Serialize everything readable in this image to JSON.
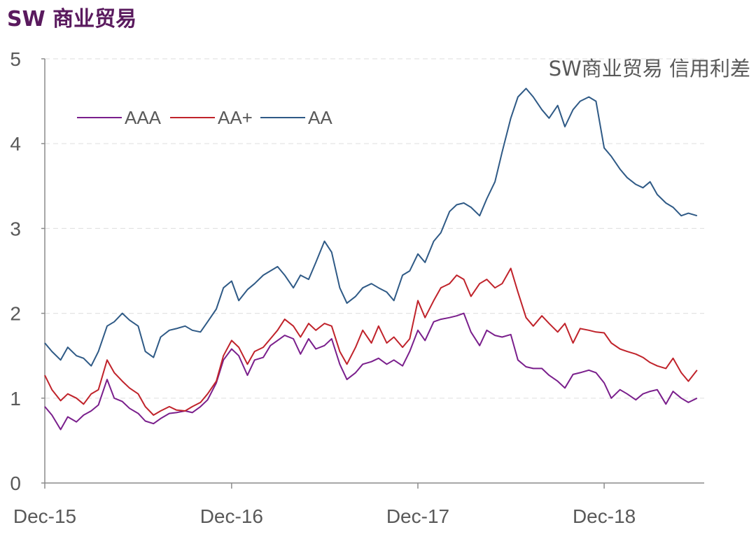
{
  "page_title": "SW 商业贸易",
  "chart_data": {
    "type": "line",
    "title": "SW商业贸易 信用利差",
    "xlabel": "",
    "ylabel": "",
    "ylim": [
      0,
      5
    ],
    "xlim": [
      "2015-12-01",
      "2019-06-15"
    ],
    "yticks": [
      "0",
      "1",
      "2",
      "3",
      "4",
      "5"
    ],
    "xticks": [
      {
        "label": "Dec-15",
        "date": "2015-12-01"
      },
      {
        "label": "Dec-16",
        "date": "2016-12-01"
      },
      {
        "label": "Dec-17",
        "date": "2017-12-01"
      },
      {
        "label": "Dec-18",
        "date": "2018-12-01"
      }
    ],
    "grid": "horizontal dashed",
    "legend_position": "top-left",
    "series": [
      {
        "name": "AAA",
        "color": "#7a1f8c",
        "points": [
          [
            "2015-12-01",
            0.9
          ],
          [
            "2015-12-15",
            0.8
          ],
          [
            "2016-01-01",
            0.63
          ],
          [
            "2016-01-15",
            0.78
          ],
          [
            "2016-02-01",
            0.72
          ],
          [
            "2016-02-15",
            0.8
          ],
          [
            "2016-03-01",
            0.85
          ],
          [
            "2016-03-15",
            0.92
          ],
          [
            "2016-04-01",
            1.22
          ],
          [
            "2016-04-15",
            1.0
          ],
          [
            "2016-05-01",
            0.96
          ],
          [
            "2016-05-15",
            0.88
          ],
          [
            "2016-06-01",
            0.82
          ],
          [
            "2016-06-15",
            0.73
          ],
          [
            "2016-07-01",
            0.7
          ],
          [
            "2016-07-15",
            0.76
          ],
          [
            "2016-08-01",
            0.82
          ],
          [
            "2016-08-15",
            0.83
          ],
          [
            "2016-09-01",
            0.85
          ],
          [
            "2016-09-15",
            0.83
          ],
          [
            "2016-10-01",
            0.9
          ],
          [
            "2016-10-15",
            0.98
          ],
          [
            "2016-11-01",
            1.18
          ],
          [
            "2016-11-15",
            1.45
          ],
          [
            "2016-12-01",
            1.58
          ],
          [
            "2016-12-15",
            1.5
          ],
          [
            "2017-01-01",
            1.27
          ],
          [
            "2017-01-15",
            1.45
          ],
          [
            "2017-02-01",
            1.48
          ],
          [
            "2017-02-15",
            1.62
          ],
          [
            "2017-03-01",
            1.68
          ],
          [
            "2017-03-15",
            1.74
          ],
          [
            "2017-04-01",
            1.7
          ],
          [
            "2017-04-15",
            1.52
          ],
          [
            "2017-05-01",
            1.7
          ],
          [
            "2017-05-15",
            1.58
          ],
          [
            "2017-06-01",
            1.62
          ],
          [
            "2017-06-15",
            1.7
          ],
          [
            "2017-07-01",
            1.4
          ],
          [
            "2017-07-15",
            1.22
          ],
          [
            "2017-08-01",
            1.3
          ],
          [
            "2017-08-15",
            1.4
          ],
          [
            "2017-09-01",
            1.43
          ],
          [
            "2017-09-15",
            1.47
          ],
          [
            "2017-10-01",
            1.4
          ],
          [
            "2017-10-15",
            1.45
          ],
          [
            "2017-11-01",
            1.38
          ],
          [
            "2017-11-15",
            1.55
          ],
          [
            "2017-12-01",
            1.8
          ],
          [
            "2017-12-15",
            1.68
          ],
          [
            "2018-01-01",
            1.9
          ],
          [
            "2018-01-15",
            1.93
          ],
          [
            "2018-02-01",
            1.95
          ],
          [
            "2018-02-15",
            1.97
          ],
          [
            "2018-03-01",
            2.0
          ],
          [
            "2018-03-15",
            1.78
          ],
          [
            "2018-04-01",
            1.62
          ],
          [
            "2018-04-15",
            1.8
          ],
          [
            "2018-05-01",
            1.74
          ],
          [
            "2018-05-15",
            1.72
          ],
          [
            "2018-06-01",
            1.75
          ],
          [
            "2018-06-15",
            1.45
          ],
          [
            "2018-07-01",
            1.37
          ],
          [
            "2018-07-15",
            1.35
          ],
          [
            "2018-08-01",
            1.35
          ],
          [
            "2018-08-15",
            1.27
          ],
          [
            "2018-09-01",
            1.2
          ],
          [
            "2018-09-15",
            1.12
          ],
          [
            "2018-10-01",
            1.28
          ],
          [
            "2018-10-15",
            1.3
          ],
          [
            "2018-11-01",
            1.33
          ],
          [
            "2018-11-15",
            1.3
          ],
          [
            "2018-12-01",
            1.18
          ],
          [
            "2018-12-15",
            1.0
          ],
          [
            "2019-01-01",
            1.1
          ],
          [
            "2019-01-15",
            1.05
          ],
          [
            "2019-02-01",
            0.98
          ],
          [
            "2019-02-15",
            1.05
          ],
          [
            "2019-03-01",
            1.08
          ],
          [
            "2019-03-15",
            1.1
          ],
          [
            "2019-04-01",
            0.93
          ],
          [
            "2019-04-15",
            1.08
          ],
          [
            "2019-05-01",
            1.0
          ],
          [
            "2019-05-15",
            0.95
          ],
          [
            "2019-06-01",
            1.0
          ]
        ]
      },
      {
        "name": "AA+",
        "color": "#c0232b",
        "points": [
          [
            "2015-12-01",
            1.27
          ],
          [
            "2015-12-15",
            1.1
          ],
          [
            "2016-01-01",
            0.97
          ],
          [
            "2016-01-15",
            1.05
          ],
          [
            "2016-02-01",
            1.0
          ],
          [
            "2016-02-15",
            0.93
          ],
          [
            "2016-03-01",
            1.05
          ],
          [
            "2016-03-15",
            1.1
          ],
          [
            "2016-04-01",
            1.45
          ],
          [
            "2016-04-15",
            1.3
          ],
          [
            "2016-05-01",
            1.2
          ],
          [
            "2016-05-15",
            1.12
          ],
          [
            "2016-06-01",
            1.05
          ],
          [
            "2016-06-15",
            0.9
          ],
          [
            "2016-07-01",
            0.8
          ],
          [
            "2016-07-15",
            0.85
          ],
          [
            "2016-08-01",
            0.9
          ],
          [
            "2016-08-15",
            0.86
          ],
          [
            "2016-09-01",
            0.85
          ],
          [
            "2016-09-15",
            0.9
          ],
          [
            "2016-10-01",
            0.95
          ],
          [
            "2016-10-15",
            1.05
          ],
          [
            "2016-11-01",
            1.2
          ],
          [
            "2016-11-15",
            1.5
          ],
          [
            "2016-12-01",
            1.68
          ],
          [
            "2016-12-15",
            1.6
          ],
          [
            "2017-01-01",
            1.4
          ],
          [
            "2017-01-15",
            1.55
          ],
          [
            "2017-02-01",
            1.6
          ],
          [
            "2017-02-15",
            1.7
          ],
          [
            "2017-03-01",
            1.8
          ],
          [
            "2017-03-15",
            1.93
          ],
          [
            "2017-04-01",
            1.85
          ],
          [
            "2017-04-15",
            1.72
          ],
          [
            "2017-05-01",
            1.88
          ],
          [
            "2017-05-15",
            1.8
          ],
          [
            "2017-06-01",
            1.88
          ],
          [
            "2017-06-15",
            1.85
          ],
          [
            "2017-07-01",
            1.55
          ],
          [
            "2017-07-15",
            1.4
          ],
          [
            "2017-08-01",
            1.6
          ],
          [
            "2017-08-15",
            1.8
          ],
          [
            "2017-09-01",
            1.65
          ],
          [
            "2017-09-15",
            1.85
          ],
          [
            "2017-10-01",
            1.65
          ],
          [
            "2017-10-15",
            1.72
          ],
          [
            "2017-11-01",
            1.6
          ],
          [
            "2017-11-15",
            1.7
          ],
          [
            "2017-12-01",
            2.15
          ],
          [
            "2017-12-15",
            1.95
          ],
          [
            "2018-01-01",
            2.15
          ],
          [
            "2018-01-15",
            2.3
          ],
          [
            "2018-02-01",
            2.35
          ],
          [
            "2018-02-15",
            2.45
          ],
          [
            "2018-03-01",
            2.4
          ],
          [
            "2018-03-15",
            2.2
          ],
          [
            "2018-04-01",
            2.35
          ],
          [
            "2018-04-15",
            2.4
          ],
          [
            "2018-05-01",
            2.3
          ],
          [
            "2018-05-15",
            2.35
          ],
          [
            "2018-06-01",
            2.53
          ],
          [
            "2018-06-15",
            2.25
          ],
          [
            "2018-07-01",
            1.95
          ],
          [
            "2018-07-15",
            1.85
          ],
          [
            "2018-08-01",
            1.97
          ],
          [
            "2018-08-15",
            1.88
          ],
          [
            "2018-09-01",
            1.78
          ],
          [
            "2018-09-15",
            1.88
          ],
          [
            "2018-10-01",
            1.65
          ],
          [
            "2018-10-15",
            1.82
          ],
          [
            "2018-11-01",
            1.8
          ],
          [
            "2018-11-15",
            1.78
          ],
          [
            "2018-12-01",
            1.77
          ],
          [
            "2018-12-15",
            1.65
          ],
          [
            "2019-01-01",
            1.58
          ],
          [
            "2019-01-15",
            1.55
          ],
          [
            "2019-02-01",
            1.52
          ],
          [
            "2019-02-15",
            1.48
          ],
          [
            "2019-03-01",
            1.42
          ],
          [
            "2019-03-15",
            1.38
          ],
          [
            "2019-04-01",
            1.35
          ],
          [
            "2019-04-15",
            1.47
          ],
          [
            "2019-05-01",
            1.3
          ],
          [
            "2019-05-15",
            1.2
          ],
          [
            "2019-06-01",
            1.33
          ]
        ]
      },
      {
        "name": "AA",
        "color": "#2f5a86",
        "points": [
          [
            "2015-12-01",
            1.65
          ],
          [
            "2015-12-15",
            1.55
          ],
          [
            "2016-01-01",
            1.45
          ],
          [
            "2016-01-15",
            1.6
          ],
          [
            "2016-02-01",
            1.5
          ],
          [
            "2016-02-15",
            1.47
          ],
          [
            "2016-03-01",
            1.38
          ],
          [
            "2016-03-15",
            1.55
          ],
          [
            "2016-04-01",
            1.85
          ],
          [
            "2016-04-15",
            1.9
          ],
          [
            "2016-05-01",
            2.0
          ],
          [
            "2016-05-15",
            1.92
          ],
          [
            "2016-06-01",
            1.85
          ],
          [
            "2016-06-15",
            1.55
          ],
          [
            "2016-07-01",
            1.48
          ],
          [
            "2016-07-15",
            1.72
          ],
          [
            "2016-08-01",
            1.8
          ],
          [
            "2016-08-15",
            1.82
          ],
          [
            "2016-09-01",
            1.85
          ],
          [
            "2016-09-15",
            1.8
          ],
          [
            "2016-10-01",
            1.78
          ],
          [
            "2016-10-15",
            1.9
          ],
          [
            "2016-11-01",
            2.05
          ],
          [
            "2016-11-15",
            2.3
          ],
          [
            "2016-12-01",
            2.38
          ],
          [
            "2016-12-15",
            2.15
          ],
          [
            "2017-01-01",
            2.28
          ],
          [
            "2017-01-15",
            2.35
          ],
          [
            "2017-02-01",
            2.45
          ],
          [
            "2017-02-15",
            2.5
          ],
          [
            "2017-03-01",
            2.55
          ],
          [
            "2017-03-15",
            2.45
          ],
          [
            "2017-04-01",
            2.3
          ],
          [
            "2017-04-15",
            2.45
          ],
          [
            "2017-05-01",
            2.4
          ],
          [
            "2017-05-15",
            2.6
          ],
          [
            "2017-06-01",
            2.85
          ],
          [
            "2017-06-15",
            2.72
          ],
          [
            "2017-07-01",
            2.3
          ],
          [
            "2017-07-15",
            2.12
          ],
          [
            "2017-08-01",
            2.2
          ],
          [
            "2017-08-15",
            2.3
          ],
          [
            "2017-09-01",
            2.35
          ],
          [
            "2017-09-15",
            2.3
          ],
          [
            "2017-10-01",
            2.25
          ],
          [
            "2017-10-15",
            2.15
          ],
          [
            "2017-11-01",
            2.45
          ],
          [
            "2017-11-15",
            2.5
          ],
          [
            "2017-12-01",
            2.7
          ],
          [
            "2017-12-15",
            2.6
          ],
          [
            "2018-01-01",
            2.85
          ],
          [
            "2018-01-15",
            2.95
          ],
          [
            "2018-02-01",
            3.2
          ],
          [
            "2018-02-15",
            3.28
          ],
          [
            "2018-03-01",
            3.3
          ],
          [
            "2018-03-15",
            3.25
          ],
          [
            "2018-04-01",
            3.15
          ],
          [
            "2018-04-15",
            3.35
          ],
          [
            "2018-05-01",
            3.55
          ],
          [
            "2018-05-15",
            3.9
          ],
          [
            "2018-06-01",
            4.3
          ],
          [
            "2018-06-15",
            4.55
          ],
          [
            "2018-07-01",
            4.65
          ],
          [
            "2018-07-15",
            4.55
          ],
          [
            "2018-08-01",
            4.4
          ],
          [
            "2018-08-15",
            4.3
          ],
          [
            "2018-09-01",
            4.45
          ],
          [
            "2018-09-15",
            4.2
          ],
          [
            "2018-10-01",
            4.4
          ],
          [
            "2018-10-15",
            4.5
          ],
          [
            "2018-11-01",
            4.55
          ],
          [
            "2018-11-15",
            4.5
          ],
          [
            "2018-12-01",
            3.95
          ],
          [
            "2018-12-15",
            3.85
          ],
          [
            "2019-01-01",
            3.7
          ],
          [
            "2019-01-15",
            3.6
          ],
          [
            "2019-02-01",
            3.52
          ],
          [
            "2019-02-15",
            3.48
          ],
          [
            "2019-03-01",
            3.55
          ],
          [
            "2019-03-15",
            3.4
          ],
          [
            "2019-04-01",
            3.3
          ],
          [
            "2019-04-15",
            3.25
          ],
          [
            "2019-05-01",
            3.15
          ],
          [
            "2019-05-15",
            3.18
          ],
          [
            "2019-06-01",
            3.15
          ]
        ]
      }
    ]
  }
}
